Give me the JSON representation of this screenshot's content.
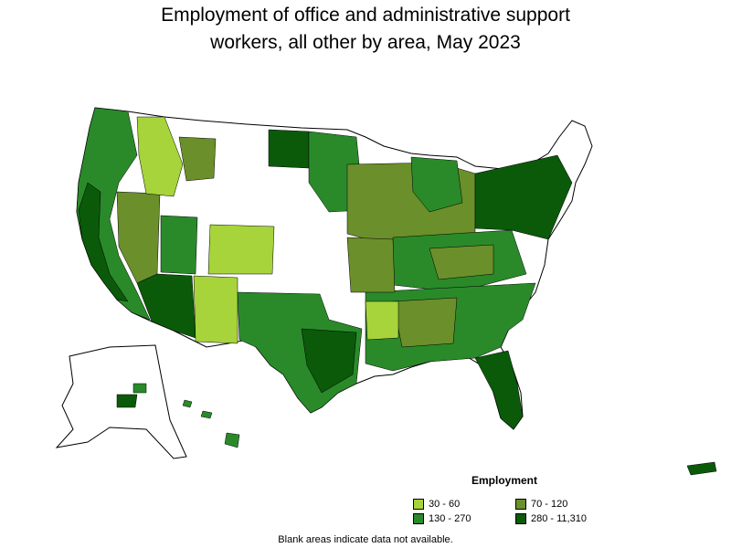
{
  "title_line1": "Employment of office and administrative support",
  "title_line2": "workers, all other by area, May 2023",
  "legend": {
    "title": "Employment",
    "items": [
      {
        "label": "30 - 60",
        "color": "#a6d43a"
      },
      {
        "label": "70 - 120",
        "color": "#6b8f2a"
      },
      {
        "label": "130 - 270",
        "color": "#2a8a2a"
      },
      {
        "label": "280 - 11,310",
        "color": "#0a5a0a"
      }
    ]
  },
  "footnote": "Blank areas indicate data not available.",
  "colors": {
    "no_data": "#ffffff",
    "outline": "#000000"
  }
}
